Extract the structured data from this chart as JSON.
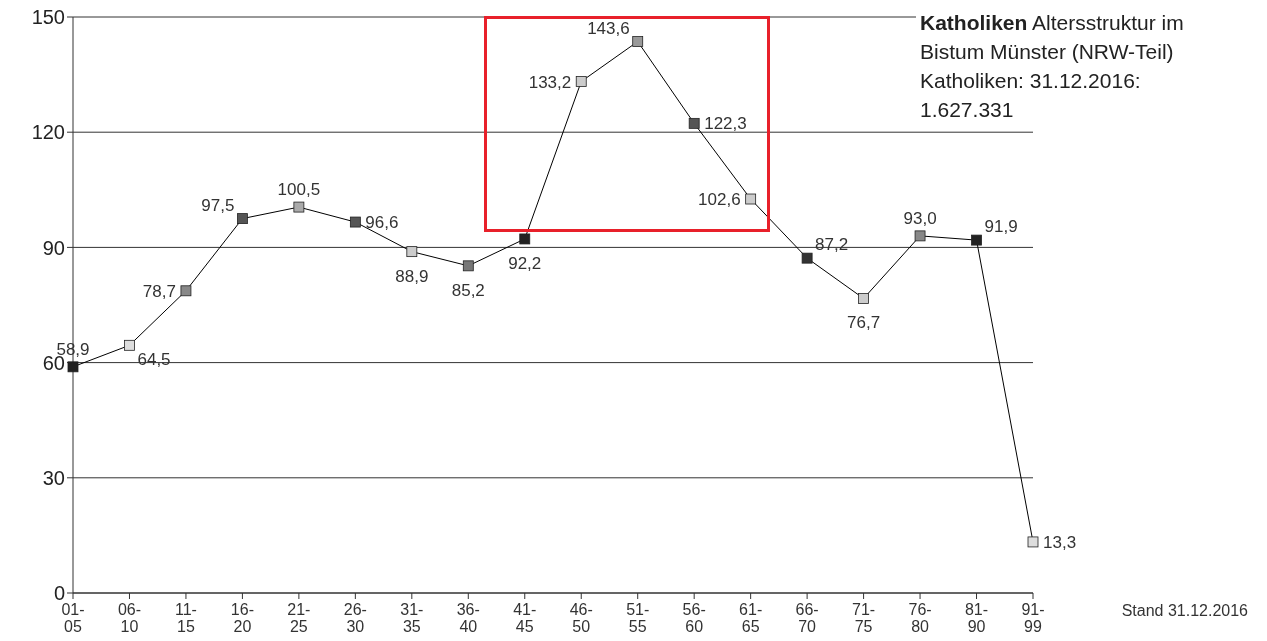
{
  "chart_data": {
    "type": "line",
    "title": "Katholiken Altersstruktur im Bistum Münster (NRW-Teil)",
    "subtitle": "Katholiken: 31.12.2016: 1.627.331",
    "annotations": [
      "Stand 31.12.2016"
    ],
    "categories": [
      "01-05",
      "06-10",
      "11-15",
      "16-20",
      "21-25",
      "26-30",
      "31-35",
      "36-40",
      "41-45",
      "46-50",
      "51-55",
      "56-60",
      "61-65",
      "66-70",
      "71-75",
      "76-80",
      "81-90",
      "91-99"
    ],
    "series": [
      {
        "color": "#000000",
        "values": [
          58.9,
          64.5,
          78.7,
          97.5,
          100.5,
          96.6,
          88.9,
          85.2,
          92.2,
          133.2,
          143.6,
          122.3,
          102.6,
          87.2,
          76.7,
          93.0,
          91.9,
          13.3
        ],
        "colors": [
          "#222222",
          "#dddddd",
          "#888888",
          "#555555",
          "#aaaaaa",
          "#555555",
          "#cccccc",
          "#777777",
          "#222222",
          "#cccccc",
          "#999999",
          "#555555",
          "#cccccc",
          "#333333",
          "#cccccc",
          "#888888",
          "#222222",
          "#dddddd"
        ],
        "value_labels": [
          "58,9",
          "64,5",
          "78,7",
          "97,5",
          "100,5",
          "96,6",
          "88,9",
          "85,2",
          "92,2",
          "133,2",
          "143,6",
          "122,3",
          "102,6",
          "87,2",
          "76,7",
          "93,0",
          "91,9",
          "13,3"
        ]
      }
    ],
    "ylim": [
      0,
      150
    ],
    "yticks": [
      0,
      30,
      60,
      90,
      120,
      150
    ],
    "grid": "y",
    "marker": "square",
    "line_style": "solid"
  }
}
